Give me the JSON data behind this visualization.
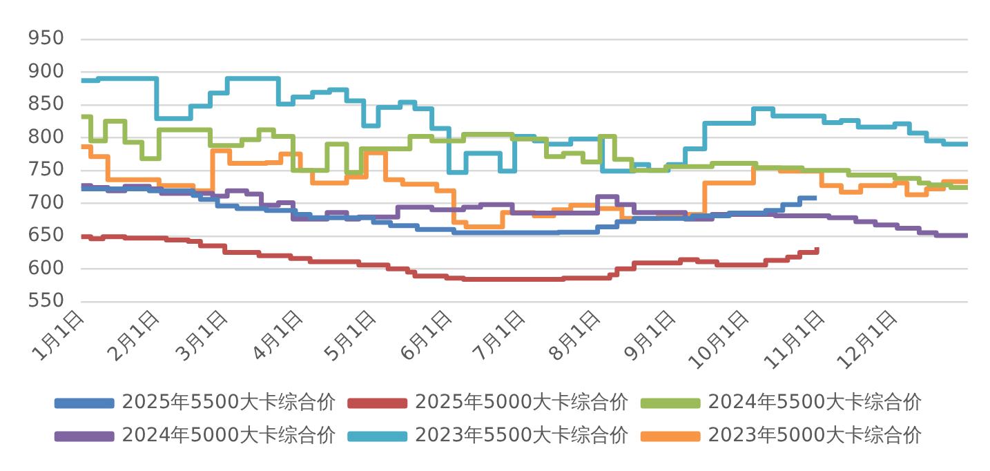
{
  "chart_data": {
    "type": "step",
    "legend": "bottom",
    "grid": "y",
    "line_style": "solid",
    "marker": "none",
    "xlim": [
      "--01-01",
      "--12-31"
    ],
    "xticks": [
      {
        "value": "--01-01",
        "label": "1月1日"
      },
      {
        "value": "--02-01",
        "label": "2月1日"
      },
      {
        "value": "--03-01",
        "label": "3月1日"
      },
      {
        "value": "--04-01",
        "label": "4月1日"
      },
      {
        "value": "--05-01",
        "label": "5月1日"
      },
      {
        "value": "--06-01",
        "label": "6月1日"
      },
      {
        "value": "--07-01",
        "label": "7月1日"
      },
      {
        "value": "--08-01",
        "label": "8月1日"
      },
      {
        "value": "--09-01",
        "label": "9月1日"
      },
      {
        "value": "--10-01",
        "label": "10月1日"
      },
      {
        "value": "--11-01",
        "label": "11月1日"
      },
      {
        "value": "--12-01",
        "label": "12月1日"
      }
    ],
    "ylim": [
      550,
      950
    ],
    "yticks": [
      550,
      600,
      650,
      700,
      750,
      800,
      850,
      900,
      950
    ],
    "series": [
      {
        "name": "2025年5500大卡综合价",
        "color": "#4f81bd",
        "x": [
          "--01-01",
          "--01-29",
          "--02-16",
          "--02-19",
          "--02-26",
          "--03-06",
          "--03-18",
          "--03-30",
          "--04-05",
          "--05-01",
          "--05-08",
          "--05-19",
          "--06-03",
          "--07-16",
          "--08-01",
          "--08-09",
          "--08-16",
          "--09-09",
          "--09-24",
          "--10-09",
          "--10-16",
          "--10-23",
          "--10-30"
        ],
        "values": [
          722,
          719,
          712,
          706,
          696,
          692,
          689,
          683,
          678,
          671,
          666,
          660,
          655,
          656,
          664,
          672,
          677,
          681,
          685,
          689,
          698,
          708,
          708
        ]
      },
      {
        "name": "2025年5000大卡综合价",
        "color": "#c0504d",
        "x": [
          "--01-01",
          "--01-05",
          "--01-10",
          "--01-19",
          "--02-05",
          "--02-14",
          "--02-19",
          "--03-01",
          "--03-15",
          "--03-28",
          "--04-05",
          "--04-25",
          "--05-07",
          "--05-15",
          "--05-18",
          "--05-31",
          "--06-07",
          "--07-18",
          "--08-06",
          "--08-09",
          "--08-16",
          "--09-04",
          "--09-11",
          "--09-19",
          "--10-09",
          "--10-18",
          "--10-23",
          "--10-30"
        ],
        "values": [
          649,
          646,
          649,
          647,
          644,
          642,
          635,
          625,
          620,
          616,
          611,
          606,
          600,
          595,
          589,
          586,
          584,
          586,
          591,
          600,
          609,
          614,
          611,
          606,
          613,
          618,
          625,
          633
        ]
      },
      {
        "name": "2024年5500大卡综合价",
        "color": "#9bbb59",
        "x": [
          "--01-01",
          "--01-05",
          "--01-11",
          "--01-19",
          "--01-26",
          "--02-02",
          "--02-23",
          "--03-08",
          "--03-15",
          "--03-21",
          "--03-29",
          "--04-12",
          "--04-20",
          "--04-26",
          "--05-16",
          "--05-25",
          "--06-07",
          "--06-27",
          "--07-11",
          "--07-18",
          "--07-26",
          "--08-02",
          "--08-08",
          "--08-15",
          "--08-29",
          "--09-17",
          "--10-05",
          "--10-24",
          "--11-12",
          "--12-01",
          "--12-11",
          "--12-15",
          "--12-24",
          "--12-27",
          "--12-31"
        ],
        "values": [
          832,
          795,
          825,
          793,
          768,
          812,
          788,
          797,
          812,
          802,
          750,
          790,
          747,
          783,
          802,
          795,
          805,
          798,
          771,
          776,
          763,
          802,
          767,
          750,
          756,
          761,
          754,
          750,
          743,
          738,
          731,
          728,
          724,
          724,
          724
        ]
      },
      {
        "name": "2024年5000大卡综合价",
        "color": "#8064a2",
        "x": [
          "--01-01",
          "--01-05",
          "--01-12",
          "--01-19",
          "--01-29",
          "--02-03",
          "--02-24",
          "--03-02",
          "--03-10",
          "--03-16",
          "--03-23",
          "--03-29",
          "--04-12",
          "--04-20",
          "--04-25",
          "--05-11",
          "--05-25",
          "--06-07",
          "--06-14",
          "--06-27",
          "--08-01",
          "--08-09",
          "--08-16",
          "--09-06",
          "--09-17",
          "--10-13",
          "--11-04",
          "--11-15",
          "--11-23",
          "--12-02",
          "--12-11",
          "--12-18",
          "--12-31"
        ],
        "values": [
          727,
          724,
          719,
          726,
          722,
          715,
          711,
          719,
          714,
          697,
          701,
          676,
          686,
          676,
          679,
          694,
          690,
          694,
          698,
          685,
          710,
          698,
          686,
          676,
          683,
          681,
          678,
          672,
          667,
          662,
          655,
          651,
          651
        ]
      },
      {
        "name": "2023年5500大卡综合价",
        "color": "#4bacc6",
        "x": [
          "--01-01",
          "--01-08",
          "--02-01",
          "--02-15",
          "--02-23",
          "--03-02",
          "--03-23",
          "--03-29",
          "--04-06",
          "--04-13",
          "--04-20",
          "--04-27",
          "--05-03",
          "--05-12",
          "--05-18",
          "--05-25",
          "--06-01",
          "--06-08",
          "--06-22",
          "--06-28",
          "--07-06",
          "--07-11",
          "--07-21",
          "--08-03",
          "--08-16",
          "--08-22",
          "--08-30",
          "--09-06",
          "--09-14",
          "--10-04",
          "--10-12",
          "--11-02",
          "--11-09",
          "--11-16",
          "--12-01",
          "--12-07",
          "--12-14",
          "--12-21",
          "--12-31"
        ],
        "values": [
          887,
          890,
          829,
          848,
          868,
          890,
          851,
          862,
          869,
          873,
          856,
          818,
          846,
          854,
          844,
          814,
          747,
          776,
          749,
          802,
          795,
          790,
          798,
          749,
          759,
          750,
          759,
          783,
          822,
          844,
          833,
          823,
          826,
          816,
          821,
          807,
          795,
          790,
          790
        ]
      },
      {
        "name": "2023年5000大卡综合价",
        "color": "#f79646",
        "x": [
          "--01-01",
          "--01-05",
          "--01-12",
          "--02-02",
          "--02-16",
          "--02-24",
          "--03-03",
          "--03-18",
          "--03-24",
          "--04-01",
          "--04-06",
          "--04-20",
          "--04-28",
          "--05-06",
          "--05-13",
          "--05-27",
          "--06-03",
          "--06-08",
          "--06-23",
          "--07-06",
          "--07-14",
          "--07-21",
          "--08-01",
          "--08-11",
          "--08-26",
          "--09-14",
          "--10-04",
          "--10-15",
          "--11-01",
          "--11-09",
          "--11-17",
          "--12-01",
          "--12-06",
          "--12-14",
          "--12-21",
          "--12-31"
        ],
        "values": [
          786,
          771,
          736,
          727,
          719,
          780,
          761,
          762,
          775,
          750,
          731,
          740,
          777,
          736,
          729,
          719,
          671,
          664,
          686,
          681,
          690,
          697,
          692,
          677,
          683,
          731,
          754,
          749,
          727,
          717,
          727,
          731,
          713,
          722,
          733,
          733
        ]
      }
    ]
  }
}
